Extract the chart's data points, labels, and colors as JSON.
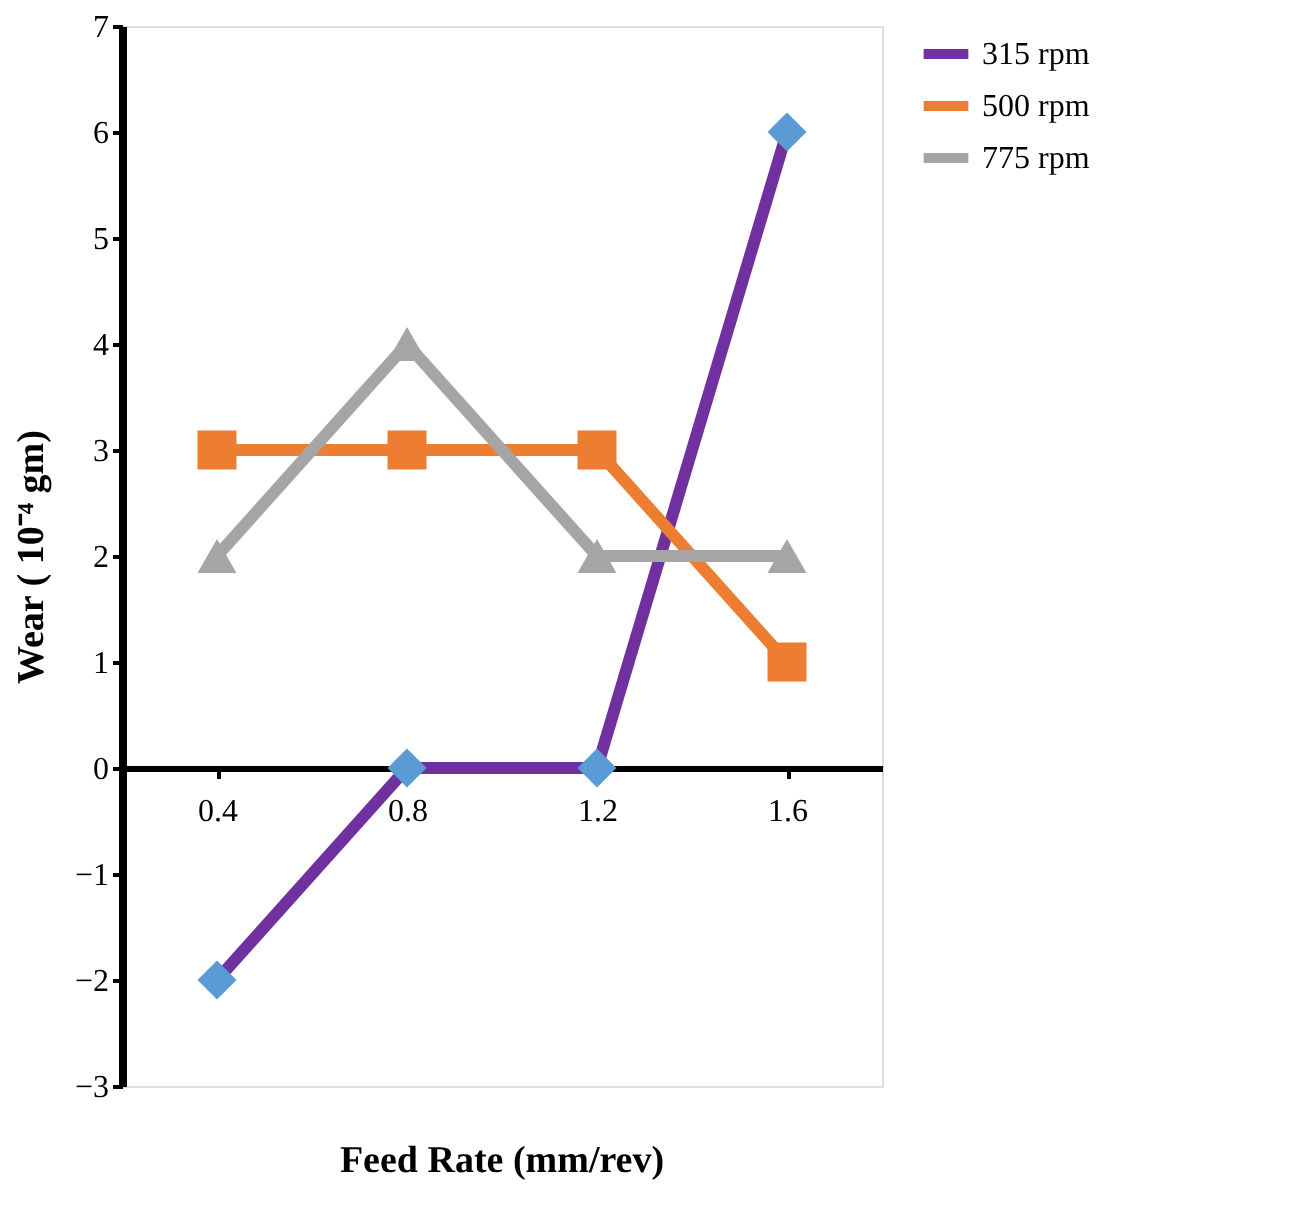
{
  "chart_data": {
    "type": "line",
    "xlabel": "Feed Rate (mm/rev)",
    "ylabel": "Wear ( 10⁻⁴ gm)",
    "categories": [
      "0.4",
      "0.8",
      "1.2",
      "1.6"
    ],
    "series": [
      {
        "name": "315 rpm",
        "color": "#7030a0",
        "marker": "diamond",
        "colors": [
          "#5b9bd5",
          "#5b9bd5",
          "#5b9bd5",
          "#5b9bd5"
        ],
        "values": [
          -2,
          0,
          0,
          6
        ]
      },
      {
        "name": "500 rpm",
        "color": "#ed7d31",
        "marker": "square",
        "values": [
          3,
          3,
          3,
          1
        ]
      },
      {
        "name": "775 rpm",
        "color": "#a5a5a5",
        "marker": "triangle",
        "values": [
          2,
          4,
          2,
          2
        ]
      }
    ],
    "ylim": [
      -3,
      7
    ],
    "yticks": [
      -3,
      -2,
      -1,
      0,
      1,
      2,
      3,
      4,
      5,
      6,
      7
    ],
    "grid": false,
    "legend": "right",
    "line_style": "solid"
  }
}
